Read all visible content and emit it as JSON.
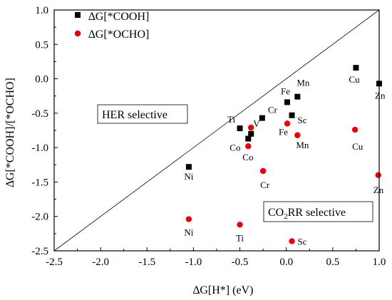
{
  "chart_data": {
    "type": "scatter",
    "xlabel": "∆G[H*] (eV)",
    "ylabel": "∆G[*COOH]/[*OCHO]",
    "xlim": [
      -2.5,
      1.0
    ],
    "ylim": [
      -2.5,
      1.0
    ],
    "x_ticks": [
      "-2.5",
      "-2.0",
      "-1.5",
      "-1.0",
      "-0.5",
      "0.0",
      "0.5",
      "1.0"
    ],
    "y_ticks": [
      "-2.5",
      "-2.0",
      "-1.5",
      "-1.0",
      "-0.5",
      "0.0",
      "0.5",
      "1.0"
    ],
    "grid": false,
    "legend_position": "top-left",
    "diagonal_line": {
      "from": [
        -2.5,
        -2.5
      ],
      "to": [
        1.0,
        1.0
      ]
    },
    "series": [
      {
        "name": "∆G[*COOH]",
        "marker": "square",
        "color": "#000000",
        "points": [
          {
            "label": "Ti",
            "x": -0.5,
            "y": -0.72
          },
          {
            "label": "V",
            "x": -0.38,
            "y": -0.8
          },
          {
            "label": "Co",
            "x": -0.41,
            "y": -0.87
          },
          {
            "label": "Cr",
            "x": -0.26,
            "y": -0.57
          },
          {
            "label": "Ni",
            "x": -1.05,
            "y": -1.28
          },
          {
            "label": "Fe",
            "x": 0.01,
            "y": -0.34
          },
          {
            "label": "Mn",
            "x": 0.12,
            "y": -0.26
          },
          {
            "label": "Sc",
            "x": 0.06,
            "y": -0.53
          },
          {
            "label": "Cu",
            "x": 0.75,
            "y": 0.16
          },
          {
            "label": "Zn",
            "x": 1.0,
            "y": -0.07
          }
        ]
      },
      {
        "name": "∆G[*OCHO]",
        "marker": "circle",
        "color": "#e8000b",
        "points": [
          {
            "label": "V",
            "x": -0.38,
            "y": -0.71
          },
          {
            "label": "Co",
            "x": -0.41,
            "y": -0.98
          },
          {
            "label": "Cr",
            "x": -0.25,
            "y": -1.34
          },
          {
            "label": "Ni",
            "x": -1.05,
            "y": -2.04
          },
          {
            "label": "Ti",
            "x": -0.5,
            "y": -2.12
          },
          {
            "label": "Fe",
            "x": 0.01,
            "y": -0.65
          },
          {
            "label": "Mn",
            "x": 0.12,
            "y": -0.82
          },
          {
            "label": "Sc",
            "x": 0.06,
            "y": -2.36
          },
          {
            "label": "Cu",
            "x": 0.74,
            "y": -0.74
          },
          {
            "label": "Zn",
            "x": 0.99,
            "y": -1.4
          }
        ]
      }
    ],
    "annotations": [
      {
        "text": "HER selective"
      },
      {
        "text_main": "CO",
        "text_sub": "2",
        "text_rest": "RR selective"
      }
    ]
  }
}
